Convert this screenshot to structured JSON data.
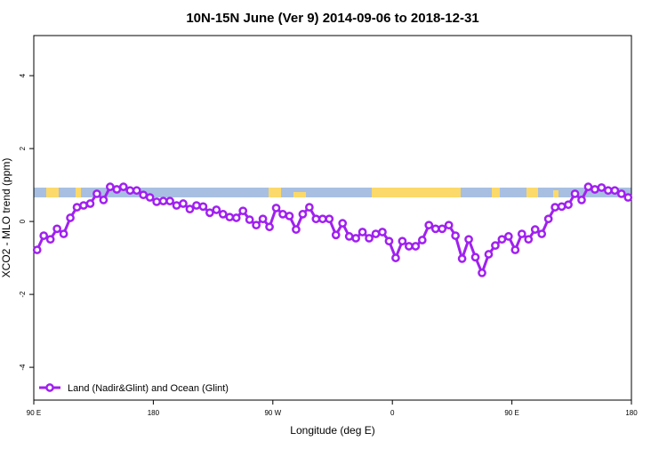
{
  "chart_data": {
    "type": "line",
    "title": "10N-15N June (Ver 9)   2014-09-06 to 2018-12-31",
    "x_label": "Longitude (deg E)",
    "y_label": "XCO2 - MLO trend (ppm)",
    "xlim": [
      90,
      540
    ],
    "ylim": [
      -4.9,
      5.1
    ],
    "xticks": [
      {
        "value": 90,
        "label": "90 E"
      },
      180,
      {
        "value": 270,
        "label": "90 W"
      },
      {
        "value": 360,
        "label": "0"
      },
      {
        "value": 450,
        "label": "90 E"
      },
      {
        "value": 540,
        "label": "180"
      }
    ],
    "yticks": [
      4,
      2,
      0,
      -2,
      -4
    ],
    "legend": "bottom-left",
    "x": [
      92.5,
      97.5,
      102.5,
      107.5,
      112.5,
      117.5,
      122.5,
      127.5,
      132.5,
      137.5,
      142.5,
      147.5,
      152.5,
      157.5,
      162.5,
      167.5,
      172.5,
      177.5,
      182.5,
      187.5,
      192.5,
      197.5,
      202.5,
      207.5,
      212.5,
      217.5,
      222.5,
      227.5,
      232.5,
      237.5,
      242.5,
      247.5,
      252.5,
      257.5,
      262.5,
      267.5,
      272.5,
      277.5,
      282.5,
      287.5,
      292.5,
      297.5,
      302.5,
      307.5,
      312.5,
      317.5,
      322.5,
      327.5,
      332.5,
      337.5,
      342.5,
      347.5,
      352.5,
      357.5,
      362.5,
      367.5,
      372.5,
      377.5,
      382.5,
      387.5,
      392.5,
      397.5,
      402.5,
      407.5,
      412.5,
      417.5,
      422.5,
      427.5,
      432.5,
      437.5,
      442.5,
      447.5,
      452.5,
      457.5,
      462.5,
      467.5,
      472.5,
      477.5,
      482.5,
      487.5,
      492.5,
      497.5,
      502.5,
      507.5,
      512.5,
      517.5,
      522.5,
      527.5,
      532.5,
      537.5
    ],
    "series": [
      {
        "name": "Land (Nadir&Glint) and Ocean (Glint)",
        "color": "#a020f0",
        "values": [
          -0.78,
          -0.39,
          -0.49,
          -0.2,
          -0.34,
          0.1,
          0.39,
          0.44,
          0.49,
          0.76,
          0.59,
          0.95,
          0.88,
          0.95,
          0.85,
          0.85,
          0.73,
          0.66,
          0.54,
          0.56,
          0.56,
          0.44,
          0.49,
          0.34,
          0.44,
          0.41,
          0.24,
          0.32,
          0.2,
          0.12,
          0.1,
          0.29,
          0.05,
          -0.1,
          0.07,
          -0.15,
          0.37,
          0.2,
          0.15,
          -0.22,
          0.2,
          0.39,
          0.07,
          0.07,
          0.07,
          -0.37,
          -0.05,
          -0.41,
          -0.46,
          -0.29,
          -0.46,
          -0.34,
          -0.29,
          -0.54,
          -1.0,
          -0.54,
          -0.68,
          -0.68,
          -0.51,
          -0.1,
          -0.2,
          -0.2,
          -0.1,
          -0.39,
          -1.02,
          -0.49,
          -0.98,
          -1.41,
          -0.9,
          -0.66,
          -0.49,
          -0.41,
          -0.78,
          -0.34,
          -0.49,
          -0.22,
          -0.34,
          0.07,
          0.39,
          0.41,
          0.46,
          0.76,
          0.59,
          0.95,
          0.88,
          0.93,
          0.85,
          0.85,
          0.76,
          0.66
        ]
      }
    ]
  }
}
